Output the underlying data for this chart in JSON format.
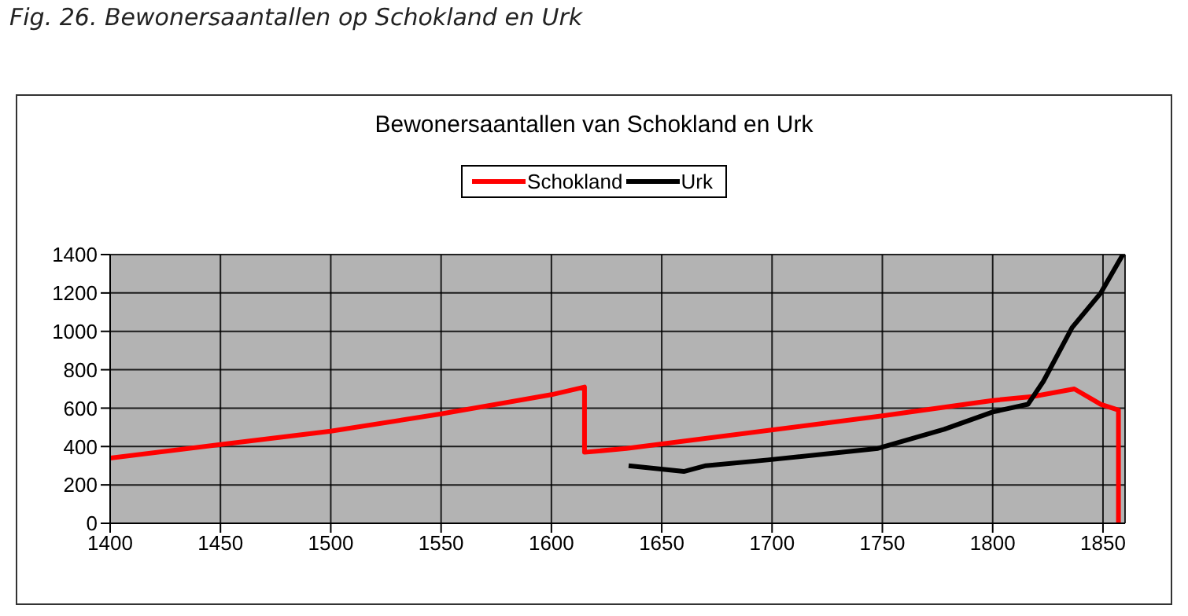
{
  "chart_data": {
    "type": "line",
    "title": "Fig. 26. Bewonersaantallen op Schokland en Urk",
    "subtitle": "Bewonersaantallen van Schokland en Urk",
    "series": [
      {
        "name": "Schokland",
        "color": "#ff0000",
        "x": [
          1400,
          1450,
          1500,
          1550,
          1600,
          1615,
          1615,
          1634,
          1750,
          1800,
          1818,
          1837,
          1849,
          1857,
          1857
        ],
        "values": [
          340,
          410,
          480,
          570,
          670,
          710,
          370,
          390,
          560,
          640,
          660,
          700,
          620,
          590,
          0
        ]
      },
      {
        "name": "Urk",
        "color": "#000000",
        "x": [
          1635,
          1660,
          1670,
          1698,
          1748,
          1778,
          1800,
          1816,
          1823,
          1836,
          1849,
          1859
        ],
        "values": [
          300,
          270,
          300,
          330,
          390,
          490,
          580,
          620,
          740,
          1020,
          1200,
          1400
        ]
      }
    ],
    "xlim": [
      1400,
      1860
    ],
    "xticks": [
      1400,
      1450,
      1500,
      1550,
      1600,
      1650,
      1700,
      1750,
      1800,
      1850
    ],
    "ylim": [
      0,
      1400
    ],
    "yticks": [
      0,
      200,
      400,
      600,
      800,
      1000,
      1200,
      1400
    ],
    "grid": true,
    "legend": "top",
    "marker": "none",
    "line_style": "solid"
  }
}
